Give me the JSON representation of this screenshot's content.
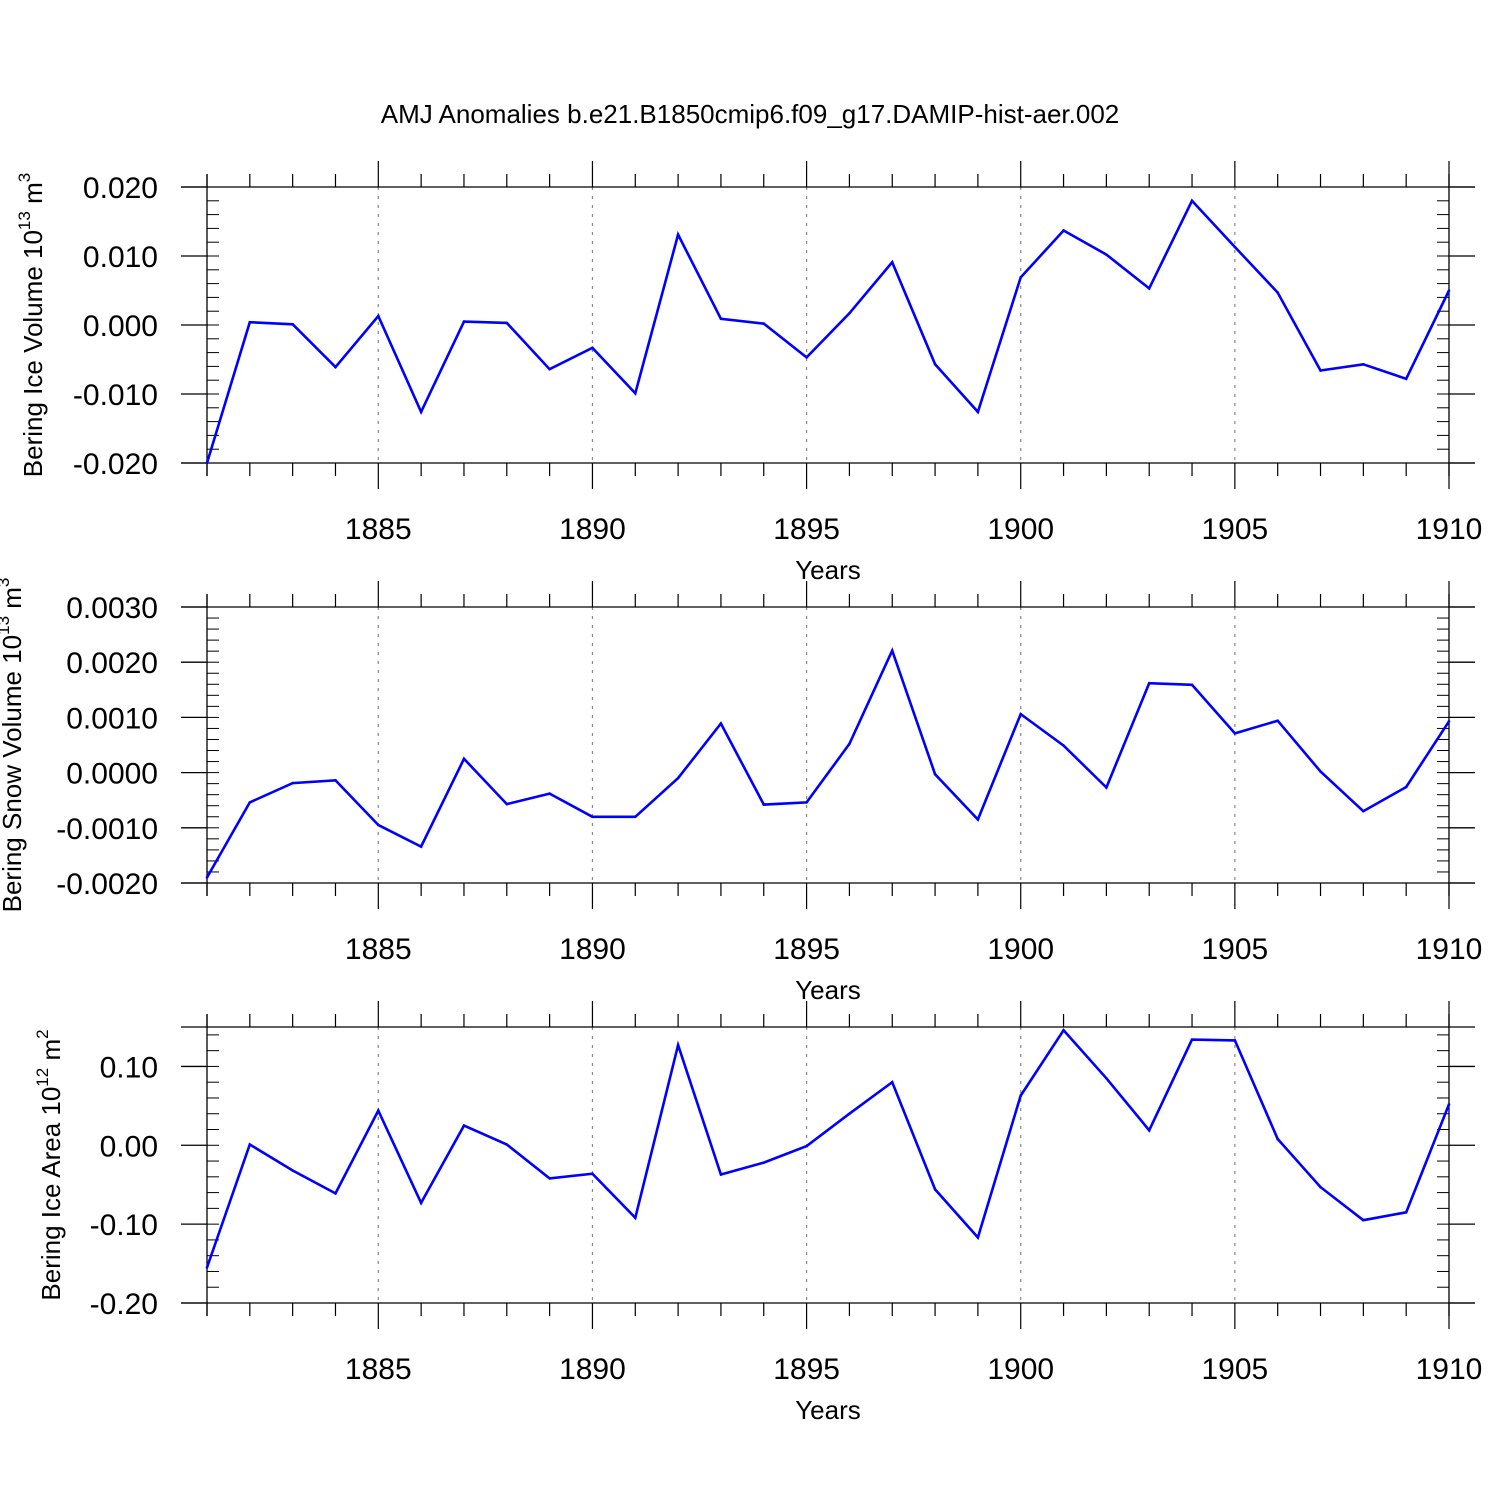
{
  "title": "AMJ Anomalies b.e21.B1850cmip6.f09_g17.DAMIP-hist-aer.002",
  "colors": {
    "line": "#0000ff",
    "axis": "#000000",
    "grid": "#888888"
  },
  "chart_data": [
    {
      "type": "line",
      "ylabel": "Bering Ice Volume 10",
      "ylabel_exp": "13",
      "ylabel_unit": "m",
      "ylabel_unit_exp": "3",
      "xlabel": "Years",
      "xlim": [
        1881,
        1910
      ],
      "ylim": [
        -0.02,
        0.02
      ],
      "yticks": [
        -0.02,
        -0.01,
        0.0,
        0.01,
        0.02
      ],
      "ytick_labels": [
        "-0.020",
        "-0.010",
        "0.000",
        "0.010",
        "0.020"
      ],
      "xticks": [
        1885,
        1890,
        1895,
        1900,
        1905,
        1910
      ],
      "xtick_labels": [
        "1885",
        "1890",
        "1895",
        "1900",
        "1905",
        "1910"
      ],
      "x": [
        1881,
        1882,
        1883,
        1884,
        1885,
        1886,
        1887,
        1888,
        1889,
        1890,
        1891,
        1892,
        1893,
        1894,
        1895,
        1896,
        1897,
        1898,
        1899,
        1900,
        1901,
        1902,
        1903,
        1904,
        1905,
        1906,
        1907,
        1908,
        1909,
        1910
      ],
      "values": [
        -0.02,
        0.0004,
        0.0001,
        -0.0061,
        0.0013,
        -0.0126,
        0.0005,
        0.0003,
        -0.0064,
        -0.0033,
        -0.0099,
        0.0131,
        0.0009,
        0.0002,
        -0.0047,
        0.0017,
        0.0091,
        -0.0057,
        -0.0126,
        0.0069,
        0.0137,
        0.0102,
        0.0053,
        0.018,
        0.0113,
        0.0047,
        -0.0066,
        -0.0057,
        -0.0078,
        0.005
      ]
    },
    {
      "type": "line",
      "ylabel": "Bering Snow Volume 10",
      "ylabel_exp": "13",
      "ylabel_unit": "m",
      "ylabel_unit_exp": "3",
      "xlabel": "Years",
      "xlim": [
        1881,
        1910
      ],
      "ylim": [
        -0.002,
        0.003
      ],
      "yticks": [
        -0.002,
        -0.001,
        0.0,
        0.001,
        0.002,
        0.003
      ],
      "ytick_labels": [
        "-0.0020",
        "-0.0010",
        "0.0000",
        "0.0010",
        "0.0020",
        "0.0030"
      ],
      "xticks": [
        1885,
        1890,
        1895,
        1900,
        1905,
        1910
      ],
      "xtick_labels": [
        "1885",
        "1890",
        "1895",
        "1900",
        "1905",
        "1910"
      ],
      "x": [
        1881,
        1882,
        1883,
        1884,
        1885,
        1886,
        1887,
        1888,
        1889,
        1890,
        1891,
        1892,
        1893,
        1894,
        1895,
        1896,
        1897,
        1898,
        1899,
        1900,
        1901,
        1902,
        1903,
        1904,
        1905,
        1906,
        1907,
        1908,
        1909,
        1910
      ],
      "values": [
        -0.0019,
        -0.00054,
        -0.00019,
        -0.00014,
        -0.00095,
        -0.00134,
        0.00025,
        -0.00057,
        -0.00038,
        -0.0008,
        -0.0008,
        -0.0001,
        0.00089,
        -0.00058,
        -0.00054,
        0.00052,
        0.00221,
        -3e-05,
        -0.00085,
        0.00106,
        0.00049,
        -0.00027,
        0.00162,
        0.00159,
        0.00071,
        0.00094,
        2e-05,
        -0.0007,
        -0.00026,
        0.00093
      ]
    },
    {
      "type": "line",
      "ylabel": "Bering Ice Area 10",
      "ylabel_exp": "12",
      "ylabel_unit": "m",
      "ylabel_unit_exp": "2",
      "xlabel": "Years",
      "xlim": [
        1881,
        1910
      ],
      "ylim": [
        -0.2,
        0.15
      ],
      "yticks": [
        -0.2,
        -0.1,
        0.0,
        0.1
      ],
      "ytick_labels": [
        "-0.20",
        "-0.10",
        "0.00",
        "0.10"
      ],
      "xticks": [
        1885,
        1890,
        1895,
        1900,
        1905,
        1910
      ],
      "xtick_labels": [
        "1885",
        "1890",
        "1895",
        "1900",
        "1905",
        "1910"
      ],
      "x": [
        1881,
        1882,
        1883,
        1884,
        1885,
        1886,
        1887,
        1888,
        1889,
        1890,
        1891,
        1892,
        1893,
        1894,
        1895,
        1896,
        1897,
        1898,
        1899,
        1900,
        1901,
        1902,
        1903,
        1904,
        1905,
        1906,
        1907,
        1908,
        1909,
        1910
      ],
      "values": [
        -0.155,
        0.001,
        -0.032,
        -0.061,
        0.044,
        -0.073,
        0.025,
        0.001,
        -0.042,
        -0.036,
        -0.092,
        0.127,
        -0.037,
        -0.022,
        -0.001,
        0.04,
        0.08,
        -0.056,
        -0.117,
        0.063,
        0.146,
        0.085,
        0.019,
        0.134,
        0.133,
        0.008,
        -0.053,
        -0.095,
        -0.085,
        0.052
      ]
    }
  ]
}
